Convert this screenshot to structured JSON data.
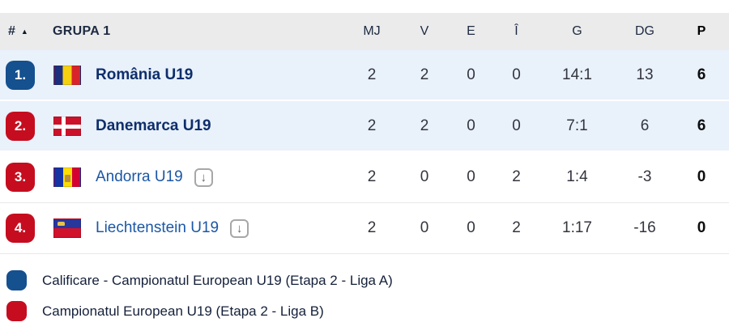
{
  "table": {
    "header": {
      "rank_label": "#",
      "sort_indicator": "▲",
      "group_label": "GRUPA 1",
      "stat_columns": [
        "MJ",
        "V",
        "E",
        "Î",
        "G",
        "DG",
        "P"
      ]
    },
    "rows": [
      {
        "rank": "1.",
        "rank_color": "#15508f",
        "team": "România U19",
        "flag": "romania-flag",
        "stats": [
          "2",
          "2",
          "0",
          "0",
          "14:1",
          "13",
          "6"
        ]
      },
      {
        "rank": "2.",
        "rank_color": "#c60d1f",
        "team": "Danemarca U19",
        "flag": "denmark-flag",
        "stats": [
          "2",
          "2",
          "0",
          "0",
          "7:1",
          "6",
          "6"
        ]
      },
      {
        "rank": "3.",
        "rank_color": "#c60d1f",
        "team": "Andorra U19",
        "flag": "andorra-flag",
        "stats": [
          "2",
          "0",
          "0",
          "2",
          "1:4",
          "-3",
          "0"
        ]
      },
      {
        "rank": "4.",
        "rank_color": "#c60d1f",
        "team": "Liechtenstein U19",
        "flag": "liechtenstein-flag",
        "stats": [
          "2",
          "0",
          "0",
          "2",
          "1:17",
          "-16",
          "0"
        ]
      }
    ]
  },
  "legend": [
    {
      "color": "#15508f",
      "label": "Calificare - Campionatul European U19 (Etapa 2 - Liga A)"
    },
    {
      "color": "#c60d1f",
      "label": "Campionatul European U19 (Etapa 2 - Liga B)"
    }
  ],
  "colors": {
    "highlight_row_bg": "#e9f1fb",
    "header_bg": "#ebebeb",
    "accent_blue": "#15508f",
    "accent_red": "#c60d1f"
  }
}
